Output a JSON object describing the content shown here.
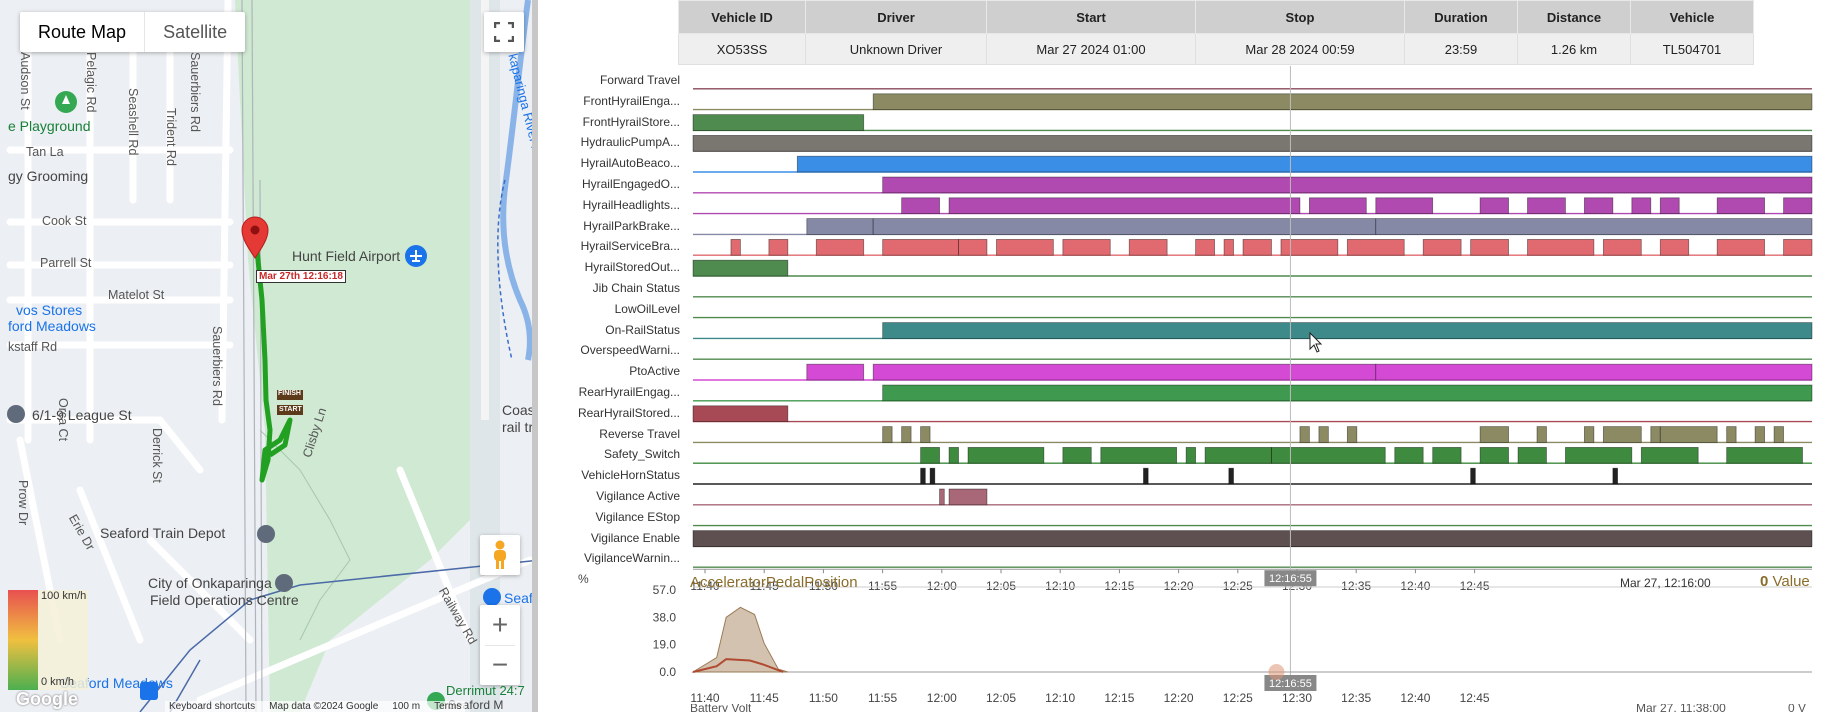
{
  "map": {
    "type_buttons": [
      "Route Map",
      "Satellite"
    ],
    "active_type": "Route Map",
    "labels": {
      "playground": "e Playground",
      "grooming": "gy Grooming",
      "tan": "Tan La",
      "cook": "Cook St",
      "parrell": "Parrell St",
      "matelot": "Matelot St",
      "vos_stores": "vos Stores",
      "ford_meadows": "ford Meadows",
      "kstaff": "kstaff Rd",
      "orca": "Orca Ct",
      "league": "6/1-9 League St",
      "derrick": "Derrick St",
      "prow": "Prow Dr",
      "erie": "Erie Dr",
      "audson": "Audson St",
      "pelagic": "Pelagic Rd",
      "seashell": "Seashell Rd",
      "trident": "Trident Rd",
      "sauerbiers_top": "Sauerbiers Rd",
      "sauerbiers_mid": "Sauerbiers Rd",
      "airport": "Hunt Field Airport",
      "river": "kaparinga River / Ngangkiparri",
      "coast": "Coas",
      "rail": "rail tr",
      "clisby": "Clisby Ln",
      "depot": "Seaford Train Depot",
      "city1": "City of Onkaparinga",
      "city2": "Field Operations Centre",
      "railway": "Railway Rd",
      "seaf": "Seaf",
      "meadows": "Seaford Meadows",
      "derrim": "Derrimut 24:7",
      "seaford_m": "Seaford M"
    },
    "marker_tooltip": "Mar 27th 12:16:18",
    "finish_label": "FINISH",
    "start_label": "START",
    "legend_max": "100 km/h",
    "legend_min": "0 km/h",
    "attribution": [
      "Keyboard shortcuts",
      "Map data ©2024 Google",
      "100 m",
      "Terms"
    ],
    "google": "Google",
    "zoom_in": "+",
    "zoom_out": "−"
  },
  "summary": {
    "headers": [
      "Vehicle ID",
      "Driver",
      "Start",
      "Stop",
      "Duration",
      "Distance",
      "Vehicle"
    ],
    "row": [
      "XO53SS",
      "Unknown Driver",
      "Mar 27 2024 01:00",
      "Mar 28 2024 00:59",
      "23:59",
      "1.26 km",
      "TL504701"
    ]
  },
  "timeline": {
    "rows": [
      {
        "label": "Forward Travel",
        "color": "#8a4a5a",
        "segments": []
      },
      {
        "label": "FrontHyrailEnga...",
        "color": "#8b8a63",
        "segments": [
          [
            11.84,
            12.83
          ]
        ]
      },
      {
        "label": "FrontHyrailStore...",
        "color": "#4f8a4f",
        "segments": [
          [
            11.65,
            11.83
          ]
        ]
      },
      {
        "label": "HydraulicPumpA...",
        "color": "#7a7670",
        "segments": [
          [
            11.65,
            12.83
          ]
        ]
      },
      {
        "label": "HyrailAutoBeaco...",
        "color": "#3a8ee6",
        "segments": [
          [
            11.76,
            12.83
          ]
        ]
      },
      {
        "label": "HyrailEngagedO...",
        "color": "#b04ab0",
        "segments": [
          [
            11.85,
            12.83
          ]
        ]
      },
      {
        "label": "HyrailHeadlights...",
        "color": "#b04ab0",
        "segments": [
          [
            11.87,
            11.91
          ],
          [
            11.92,
            12.29
          ],
          [
            12.3,
            12.36
          ],
          [
            12.37,
            12.43
          ],
          [
            12.48,
            12.51
          ],
          [
            12.53,
            12.57
          ],
          [
            12.59,
            12.62
          ],
          [
            12.64,
            12.66
          ],
          [
            12.67,
            12.69
          ],
          [
            12.73,
            12.78
          ],
          [
            12.8,
            12.83
          ]
        ]
      },
      {
        "label": "HyrailParkBrake...",
        "color": "#8589a5",
        "segments": [
          [
            11.77,
            11.84
          ],
          [
            11.84,
            12.37
          ],
          [
            12.37,
            12.83
          ]
        ]
      },
      {
        "label": "HyrailServiceBra...",
        "color": "#e06a6f",
        "segments": [
          [
            11.69,
            11.7
          ],
          [
            11.73,
            11.75
          ],
          [
            11.78,
            11.83
          ],
          [
            11.85,
            11.93
          ],
          [
            11.93,
            11.96
          ],
          [
            11.97,
            12.03
          ],
          [
            12.04,
            12.09
          ],
          [
            12.11,
            12.15
          ],
          [
            12.18,
            12.2
          ],
          [
            12.21,
            12.22
          ],
          [
            12.23,
            12.26
          ],
          [
            12.27,
            12.33
          ],
          [
            12.34,
            12.4
          ],
          [
            12.42,
            12.46
          ],
          [
            12.47,
            12.51
          ],
          [
            12.53,
            12.6
          ],
          [
            12.61,
            12.65
          ],
          [
            12.67,
            12.7
          ],
          [
            12.73,
            12.78
          ],
          [
            12.8,
            12.83
          ]
        ]
      },
      {
        "label": "HyrailStoredOut...",
        "color": "#4f8a4f",
        "segments": [
          [
            11.65,
            11.75
          ]
        ]
      },
      {
        "label": "Jib Chain Status",
        "color": "#4f8a4f",
        "segments": []
      },
      {
        "label": "LowOilLevel",
        "color": "#4f8a4f",
        "segments": []
      },
      {
        "label": "On-RailStatus",
        "color": "#3e8a8a",
        "segments": [
          [
            11.85,
            12.83
          ]
        ]
      },
      {
        "label": "OverspeedWarni...",
        "color": "#4f8a4f",
        "segments": []
      },
      {
        "label": "PtoActive",
        "color": "#d44ad4",
        "segments": [
          [
            11.77,
            11.83
          ],
          [
            11.84,
            12.37
          ],
          [
            12.37,
            12.83
          ]
        ]
      },
      {
        "label": "RearHyrailEngag...",
        "color": "#3f9a4f",
        "segments": [
          [
            11.85,
            12.83
          ]
        ]
      },
      {
        "label": "RearHyrailStored...",
        "color": "#a84a55",
        "segments": [
          [
            11.65,
            11.75
          ]
        ]
      },
      {
        "label": "Reverse Travel",
        "color": "#8b8a63",
        "segments": [
          [
            11.85,
            11.86
          ],
          [
            11.87,
            11.88
          ],
          [
            11.89,
            11.9
          ],
          [
            12.29,
            12.3
          ],
          [
            12.31,
            12.32
          ],
          [
            12.34,
            12.35
          ],
          [
            12.48,
            12.51
          ],
          [
            12.54,
            12.55
          ],
          [
            12.59,
            12.6
          ],
          [
            12.61,
            12.65
          ],
          [
            12.66,
            12.67
          ],
          [
            12.67,
            12.73
          ],
          [
            12.74,
            12.75
          ],
          [
            12.77,
            12.78
          ],
          [
            12.79,
            12.8
          ]
        ]
      },
      {
        "label": "Safety_Switch",
        "color": "#3e8a3e",
        "segments": [
          [
            11.89,
            11.91
          ],
          [
            11.92,
            11.93
          ],
          [
            11.94,
            12.02
          ],
          [
            12.04,
            12.07
          ],
          [
            12.08,
            12.16
          ],
          [
            12.17,
            12.18
          ],
          [
            12.19,
            12.26
          ],
          [
            12.26,
            12.38
          ],
          [
            12.39,
            12.42
          ],
          [
            12.43,
            12.46
          ],
          [
            12.48,
            12.51
          ],
          [
            12.52,
            12.55
          ],
          [
            12.57,
            12.64
          ],
          [
            12.65,
            12.71
          ],
          [
            12.74,
            12.82
          ]
        ]
      },
      {
        "label": "VehicleHornStatus",
        "color": "#222222",
        "segments": [
          [
            11.89,
            11.895
          ],
          [
            11.9,
            11.905
          ],
          [
            12.125,
            12.13
          ],
          [
            12.215,
            12.22
          ],
          [
            12.47,
            12.475
          ],
          [
            12.62,
            12.625
          ]
        ]
      },
      {
        "label": "Vigilance Active",
        "color": "#a86878",
        "segments": [
          [
            11.91,
            11.915
          ],
          [
            11.92,
            11.96
          ]
        ]
      },
      {
        "label": "Vigilance EStop",
        "color": "#4f8a4f",
        "segments": []
      },
      {
        "label": "Vigilance Enable",
        "color": "#5e5050",
        "segments": [
          [
            11.65,
            12.83
          ]
        ]
      },
      {
        "label": "VigilanceWarnin...",
        "color": "#4f8a4f",
        "segments": []
      }
    ],
    "axis": {
      "start": 11.65,
      "end": 12.83
    },
    "ticks": [
      "11:40",
      "11:45",
      "11:50",
      "11:55",
      "12:00",
      "12:05",
      "12:10",
      "12:15",
      "12:20",
      "12:25",
      "12:30",
      "12:35",
      "12:40",
      "12:45"
    ],
    "cursor_label": "12:16:55",
    "cursor_time": 12.28
  },
  "pedal": {
    "title": "AcceleratorPedalPosition",
    "unit": "%",
    "yticks": [
      "57.0",
      "38.0",
      "19.0",
      "0.0"
    ],
    "date_label": "Mar 27, 12:16:00",
    "value": "0",
    "value_suffix": "Value",
    "series_max": [
      [
        11.65,
        0
      ],
      [
        11.675,
        10
      ],
      [
        11.685,
        38
      ],
      [
        11.7,
        45
      ],
      [
        11.715,
        40
      ],
      [
        11.725,
        20
      ],
      [
        11.74,
        2
      ],
      [
        11.75,
        0
      ]
    ],
    "series_line": [
      [
        11.65,
        0
      ],
      [
        11.675,
        4
      ],
      [
        11.685,
        9
      ],
      [
        11.71,
        8
      ],
      [
        11.725,
        5
      ],
      [
        11.745,
        0
      ]
    ],
    "bottom_left": "Battery Volt",
    "bottom_date": "Mar 27, 11:38:00",
    "bottom_right": "0 V"
  },
  "colors": {
    "map_road": "#ffffff",
    "map_green": "#cfe9d2",
    "route": "#2aa12a",
    "accent": "#1a73e8"
  }
}
